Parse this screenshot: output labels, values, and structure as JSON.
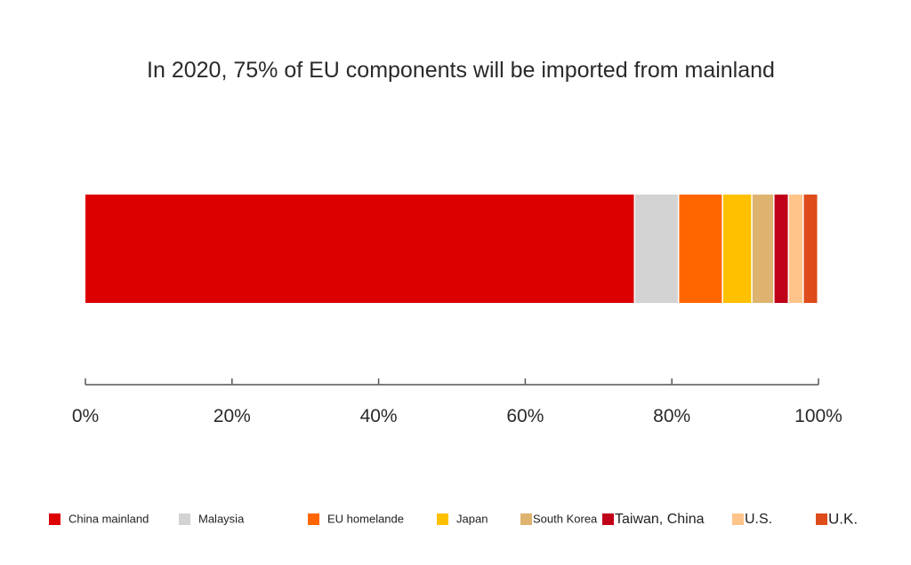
{
  "chart_data": {
    "type": "bar",
    "orientation": "horizontal",
    "stacked": true,
    "title": "In 2020, 75% of EU components will be imported from mainland",
    "xlabel": "",
    "ylabel": "",
    "xlim": [
      0,
      100
    ],
    "x_ticks": [
      0,
      20,
      40,
      60,
      80,
      100
    ],
    "x_tick_labels": [
      "0%",
      "20%",
      "40%",
      "60%",
      "80%",
      "100%"
    ],
    "grid": false,
    "legend_position": "bottom",
    "series": [
      {
        "name": "China mainland",
        "value": 75,
        "color": "#dd0000"
      },
      {
        "name": "Malaysia",
        "value": 6,
        "color": "#d3d3d3"
      },
      {
        "name": "EU homelande",
        "value": 6,
        "color": "#ff6600"
      },
      {
        "name": "Japan",
        "value": 4,
        "color": "#ffc000"
      },
      {
        "name": "South Korea",
        "value": 3,
        "color": "#deb36f"
      },
      {
        "name": "Taiwan, China",
        "value": 2,
        "color": "#c00018"
      },
      {
        "name": "U.S.",
        "value": 2,
        "color": "#ffc489"
      },
      {
        "name": "U.K.",
        "value": 2,
        "color": "#dd4c1a"
      }
    ]
  }
}
